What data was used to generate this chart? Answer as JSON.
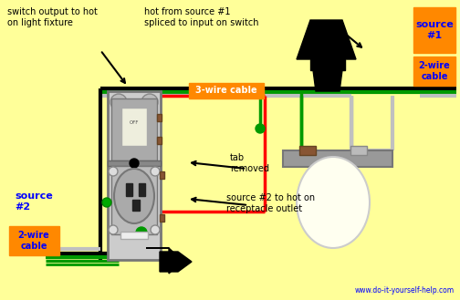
{
  "bg_color": "#FFFF99",
  "colors": {
    "black": "#000000",
    "red": "#FF0000",
    "green": "#00BB00",
    "green_dark": "#009900",
    "white_wire": "#C0C0C0",
    "gray": "#AAAAAA",
    "gray_dark": "#888888",
    "orange": "#FF8800",
    "blue": "#0000FF",
    "brown": "#885533",
    "outlet_gray": "#BBBBBB",
    "switch_body": "#999999"
  },
  "texts": {
    "top_left": "switch output to hot\non light fixture",
    "top_mid": "hot from source #1\nspliced to input on switch",
    "source1": "source\n#1",
    "cable_2wire": "2-wire\ncable",
    "cable_3wire": "3-wire cable",
    "source2": "source\n#2",
    "tab_removed": "tab\nremoved",
    "source2_hot": "source #2 to hot on\nreceptacle outlet",
    "website": "www.do-it-yourself-help.com"
  }
}
